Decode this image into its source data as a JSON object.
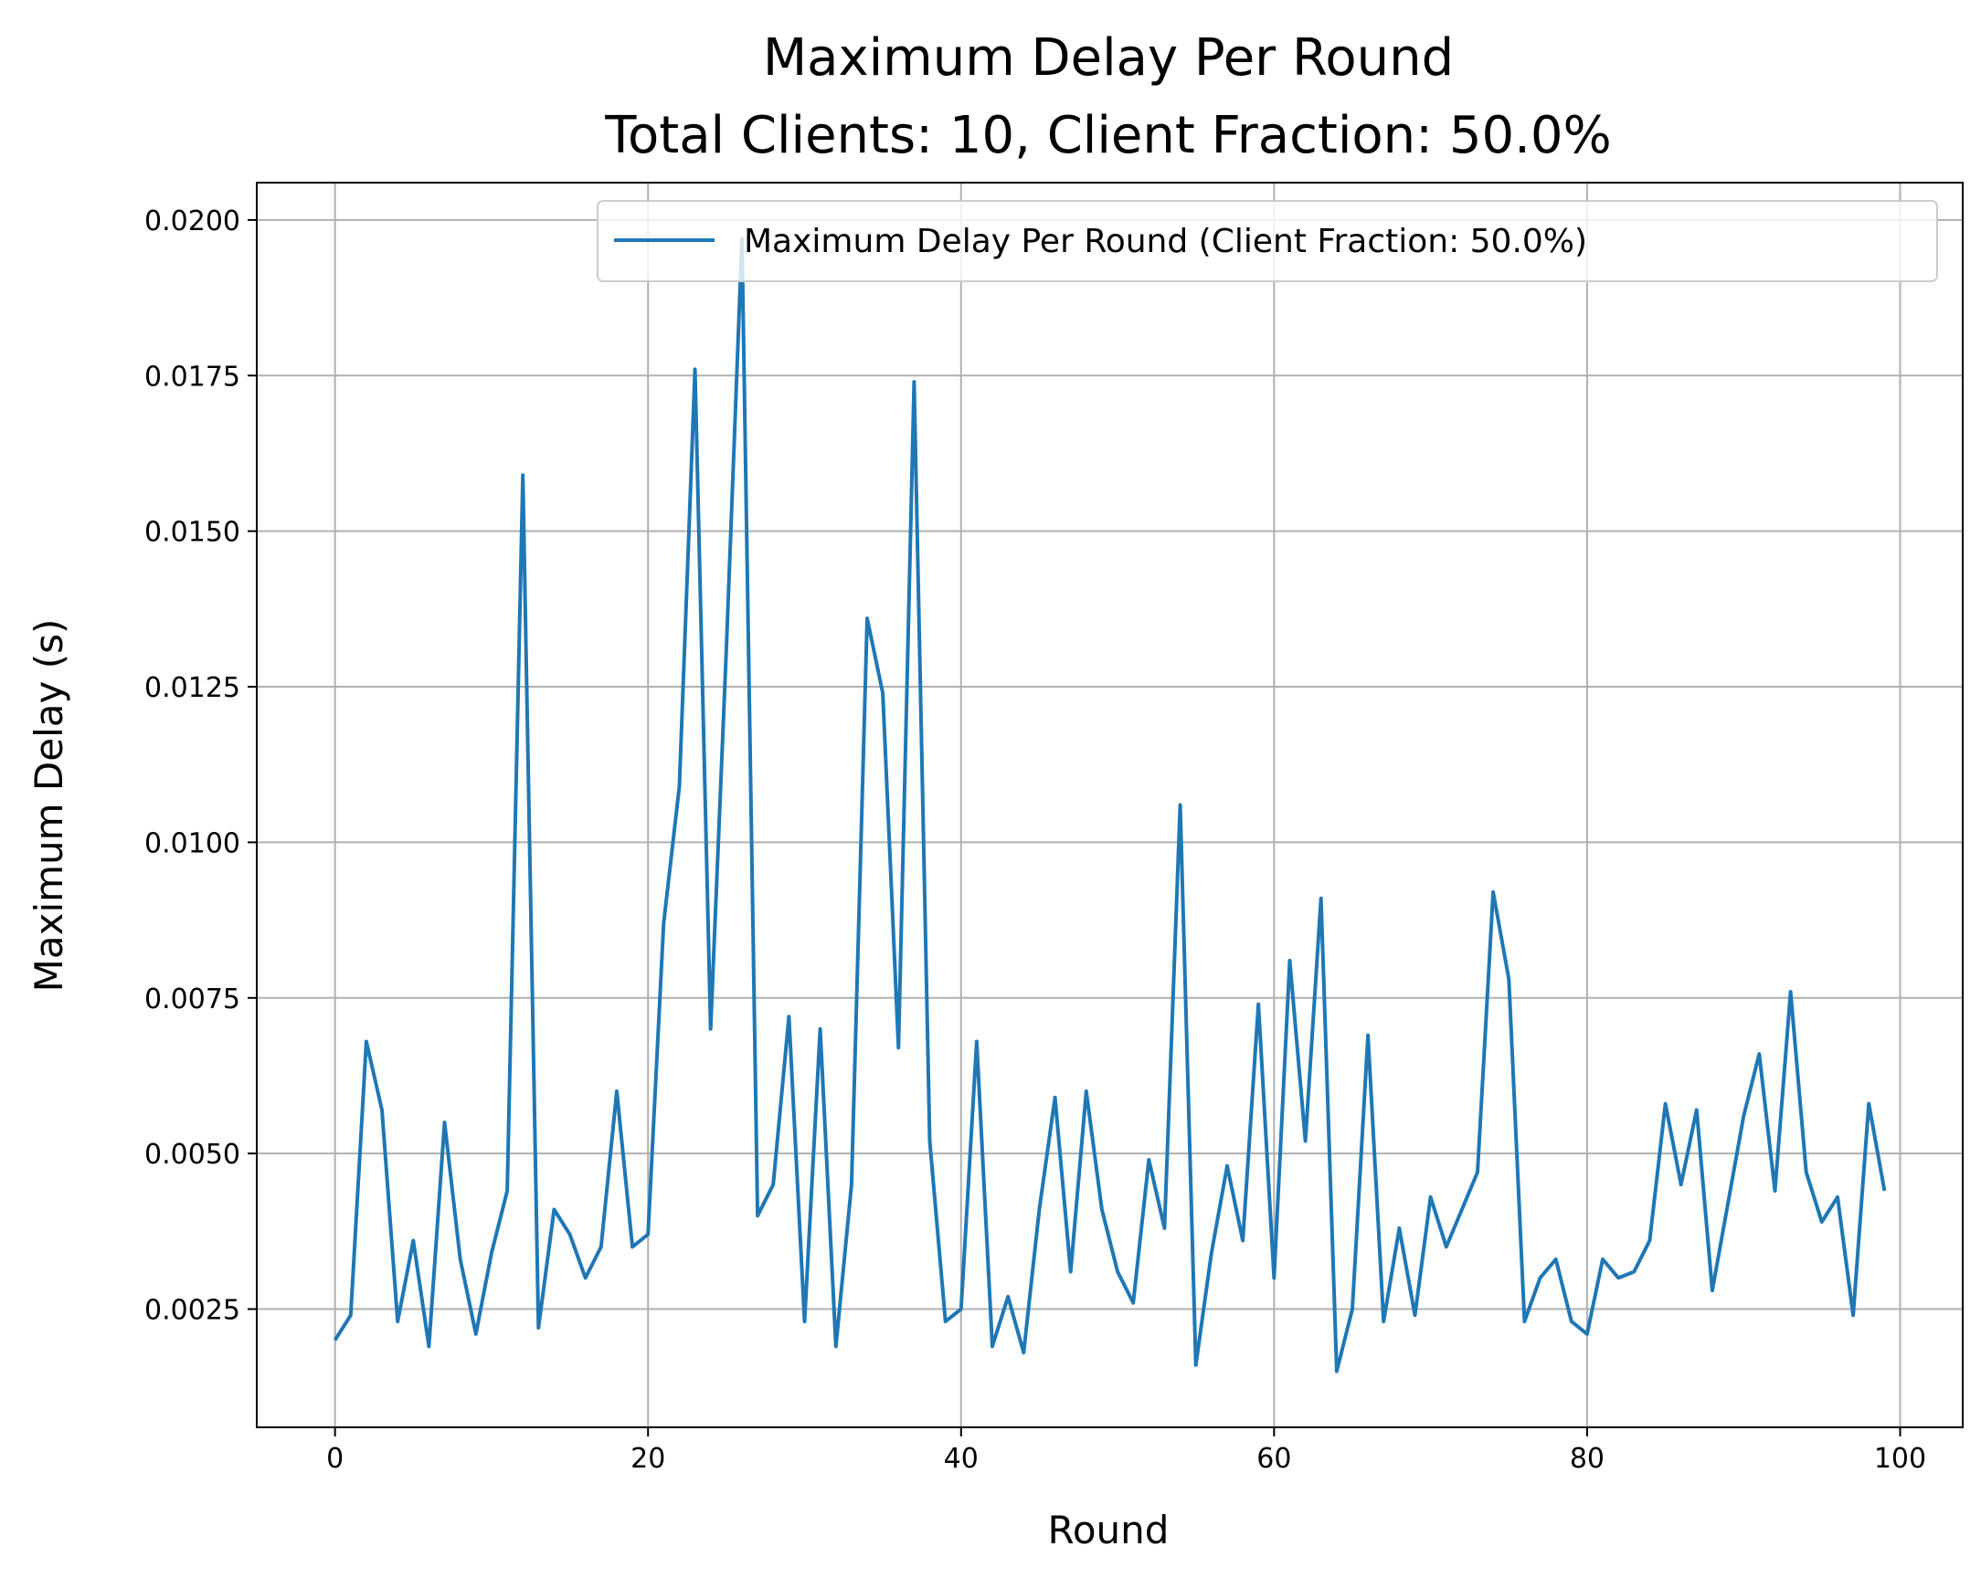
{
  "chart_data": {
    "type": "line",
    "title_lines": [
      "Maximum Delay Per Round",
      "Total Clients: 10, Client Fraction: 50.0%"
    ],
    "xlabel": "Round",
    "ylabel": "Maximum Delay (s)",
    "xlim": [
      -5,
      104
    ],
    "ylim": [
      0.0006,
      0.0206
    ],
    "x_ticks": [
      0,
      20,
      40,
      60,
      80,
      100
    ],
    "x_tick_labels": [
      "0",
      "20",
      "40",
      "60",
      "80",
      "100"
    ],
    "y_ticks": [
      0.0025,
      0.005,
      0.0075,
      0.01,
      0.0125,
      0.015,
      0.0175,
      0.02
    ],
    "y_tick_labels": [
      "0.0025",
      "0.0050",
      "0.0075",
      "0.0100",
      "0.0125",
      "0.0150",
      "0.0175",
      "0.0200"
    ],
    "grid": true,
    "legend_position": "top-right",
    "series": [
      {
        "name": "Maximum Delay Per Round (Client Fraction: 50.0%)",
        "color": "#1f77b4",
        "x": [
          0,
          1,
          2,
          3,
          4,
          5,
          6,
          7,
          8,
          9,
          10,
          11,
          12,
          13,
          14,
          15,
          16,
          17,
          18,
          19,
          20,
          21,
          22,
          23,
          24,
          25,
          26,
          27,
          28,
          29,
          30,
          31,
          32,
          33,
          34,
          35,
          36,
          37,
          38,
          39,
          40,
          41,
          42,
          43,
          44,
          45,
          46,
          47,
          48,
          49,
          50,
          51,
          52,
          53,
          54,
          55,
          56,
          57,
          58,
          59,
          60,
          61,
          62,
          63,
          64,
          65,
          66,
          67,
          68,
          69,
          70,
          71,
          72,
          73,
          74,
          75,
          76,
          77,
          78,
          79,
          80,
          81,
          82,
          83,
          84,
          85,
          86,
          87,
          88,
          89,
          90,
          91,
          92,
          93,
          94,
          95,
          96,
          97,
          98,
          99
        ],
        "values": [
          0.002,
          0.0024,
          0.0068,
          0.0057,
          0.0023,
          0.0036,
          0.0019,
          0.0055,
          0.0033,
          0.0021,
          0.0034,
          0.0044,
          0.0159,
          0.0022,
          0.0041,
          0.0037,
          0.003,
          0.0035,
          0.006,
          0.0035,
          0.0037,
          0.0087,
          0.0109,
          0.0176,
          0.007,
          0.0131,
          0.0197,
          0.004,
          0.0045,
          0.0072,
          0.0023,
          0.007,
          0.0019,
          0.0045,
          0.0136,
          0.0124,
          0.0067,
          0.0174,
          0.0052,
          0.0023,
          0.0025,
          0.0068,
          0.0019,
          0.0027,
          0.0018,
          0.0041,
          0.0059,
          0.0031,
          0.006,
          0.0041,
          0.0031,
          0.0026,
          0.0049,
          0.0038,
          0.0106,
          0.0016,
          0.0034,
          0.0048,
          0.0036,
          0.0074,
          0.003,
          0.0081,
          0.0052,
          0.0091,
          0.0015,
          0.0025,
          0.0069,
          0.0023,
          0.0038,
          0.0024,
          0.0043,
          0.0035,
          0.0041,
          0.0047,
          0.0092,
          0.0078,
          0.0023,
          0.003,
          0.0033,
          0.0023,
          0.0021,
          0.0033,
          0.003,
          0.0031,
          0.0036,
          0.0058,
          0.0045,
          0.0057,
          0.0028,
          0.0042,
          0.0056,
          0.0066,
          0.0044,
          0.0076,
          0.0047,
          0.0039,
          0.0043,
          0.0024,
          0.0058,
          0.0044
        ]
      }
    ]
  }
}
